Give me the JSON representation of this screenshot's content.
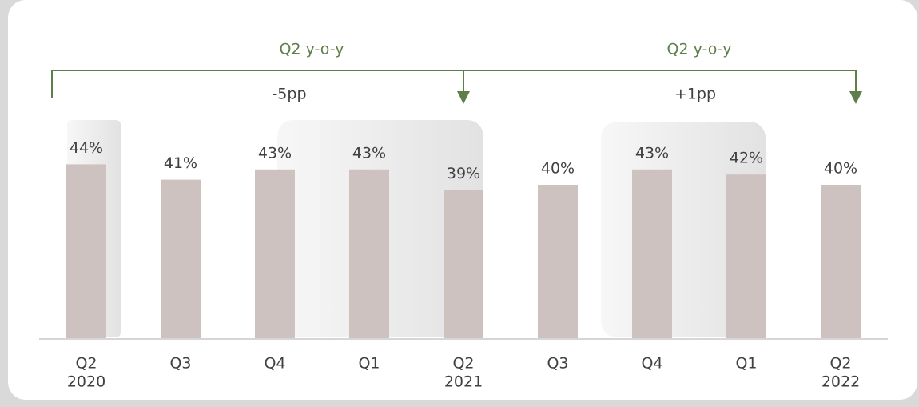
{
  "chart_data": {
    "type": "bar",
    "categories": [
      [
        "Q2",
        "2020"
      ],
      [
        "Q3"
      ],
      [
        "Q4"
      ],
      [
        "Q1"
      ],
      [
        "Q2",
        "2021"
      ],
      [
        "Q3"
      ],
      [
        "Q4"
      ],
      [
        "Q1"
      ],
      [
        "Q2",
        "2022"
      ]
    ],
    "values": [
      44,
      41,
      43,
      43,
      39,
      40,
      43,
      42,
      40
    ],
    "value_labels": [
      "44%",
      "41%",
      "43%",
      "43%",
      "39%",
      "40%",
      "43%",
      "42%",
      "40%"
    ],
    "color": "#cdc2bf",
    "ylim": [
      10,
      60
    ],
    "annotations": [
      {
        "label": "Q2 y-o-y",
        "change": "-5pp"
      },
      {
        "label": "Q2 y-o-y",
        "change": "+1pp"
      }
    ]
  }
}
